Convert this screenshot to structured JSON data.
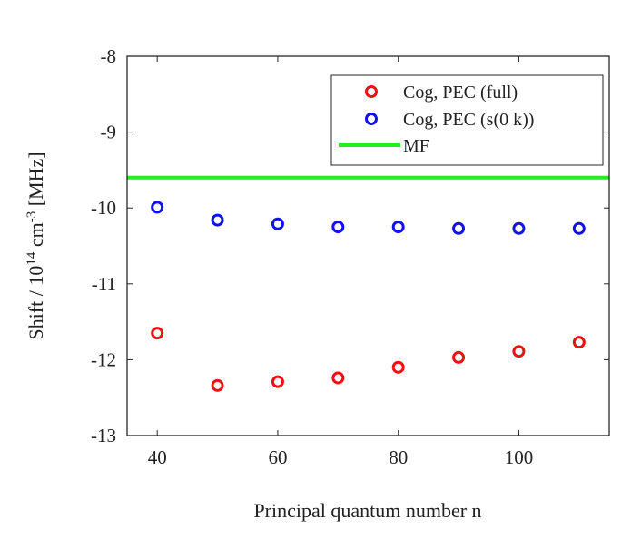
{
  "chart_data": {
    "type": "scatter",
    "title": "",
    "xlabel": "Principal quantum number n",
    "ylabel": {
      "prefix": "Shift / 10",
      "exp1": "14",
      "mid": " cm",
      "exp2": "-3",
      "suffix": " [MHz]"
    },
    "xlim": [
      35,
      115
    ],
    "ylim": [
      -13,
      -8
    ],
    "xticks": [
      40,
      60,
      80,
      100
    ],
    "xtick_labels": [
      "40",
      "60",
      "80",
      "100"
    ],
    "yticks": [
      -8,
      -9,
      -10,
      -11,
      -12,
      -13
    ],
    "ytick_labels": [
      "-8",
      "-9",
      "-10",
      "-11",
      "-12",
      "-13"
    ],
    "grid": false,
    "legend_position": "top-right",
    "series": [
      {
        "name": "Cog, PEC (full)",
        "kind": "markers",
        "color": "#ee1111",
        "x": [
          40,
          50,
          60,
          70,
          80,
          90,
          100,
          110
        ],
        "y": [
          -11.65,
          -12.34,
          -12.29,
          -12.24,
          -12.1,
          -11.97,
          -11.89,
          -11.77
        ]
      },
      {
        "name": "Cog, PEC (s(0 k))",
        "kind": "markers",
        "color": "#1111ee",
        "x": [
          40,
          50,
          60,
          70,
          80,
          90,
          100,
          110
        ],
        "y": [
          -9.99,
          -10.16,
          -10.21,
          -10.25,
          -10.25,
          -10.27,
          -10.27,
          -10.27
        ]
      },
      {
        "name": "MF",
        "kind": "hline",
        "color": "#22ee22",
        "value": -9.6
      }
    ]
  }
}
